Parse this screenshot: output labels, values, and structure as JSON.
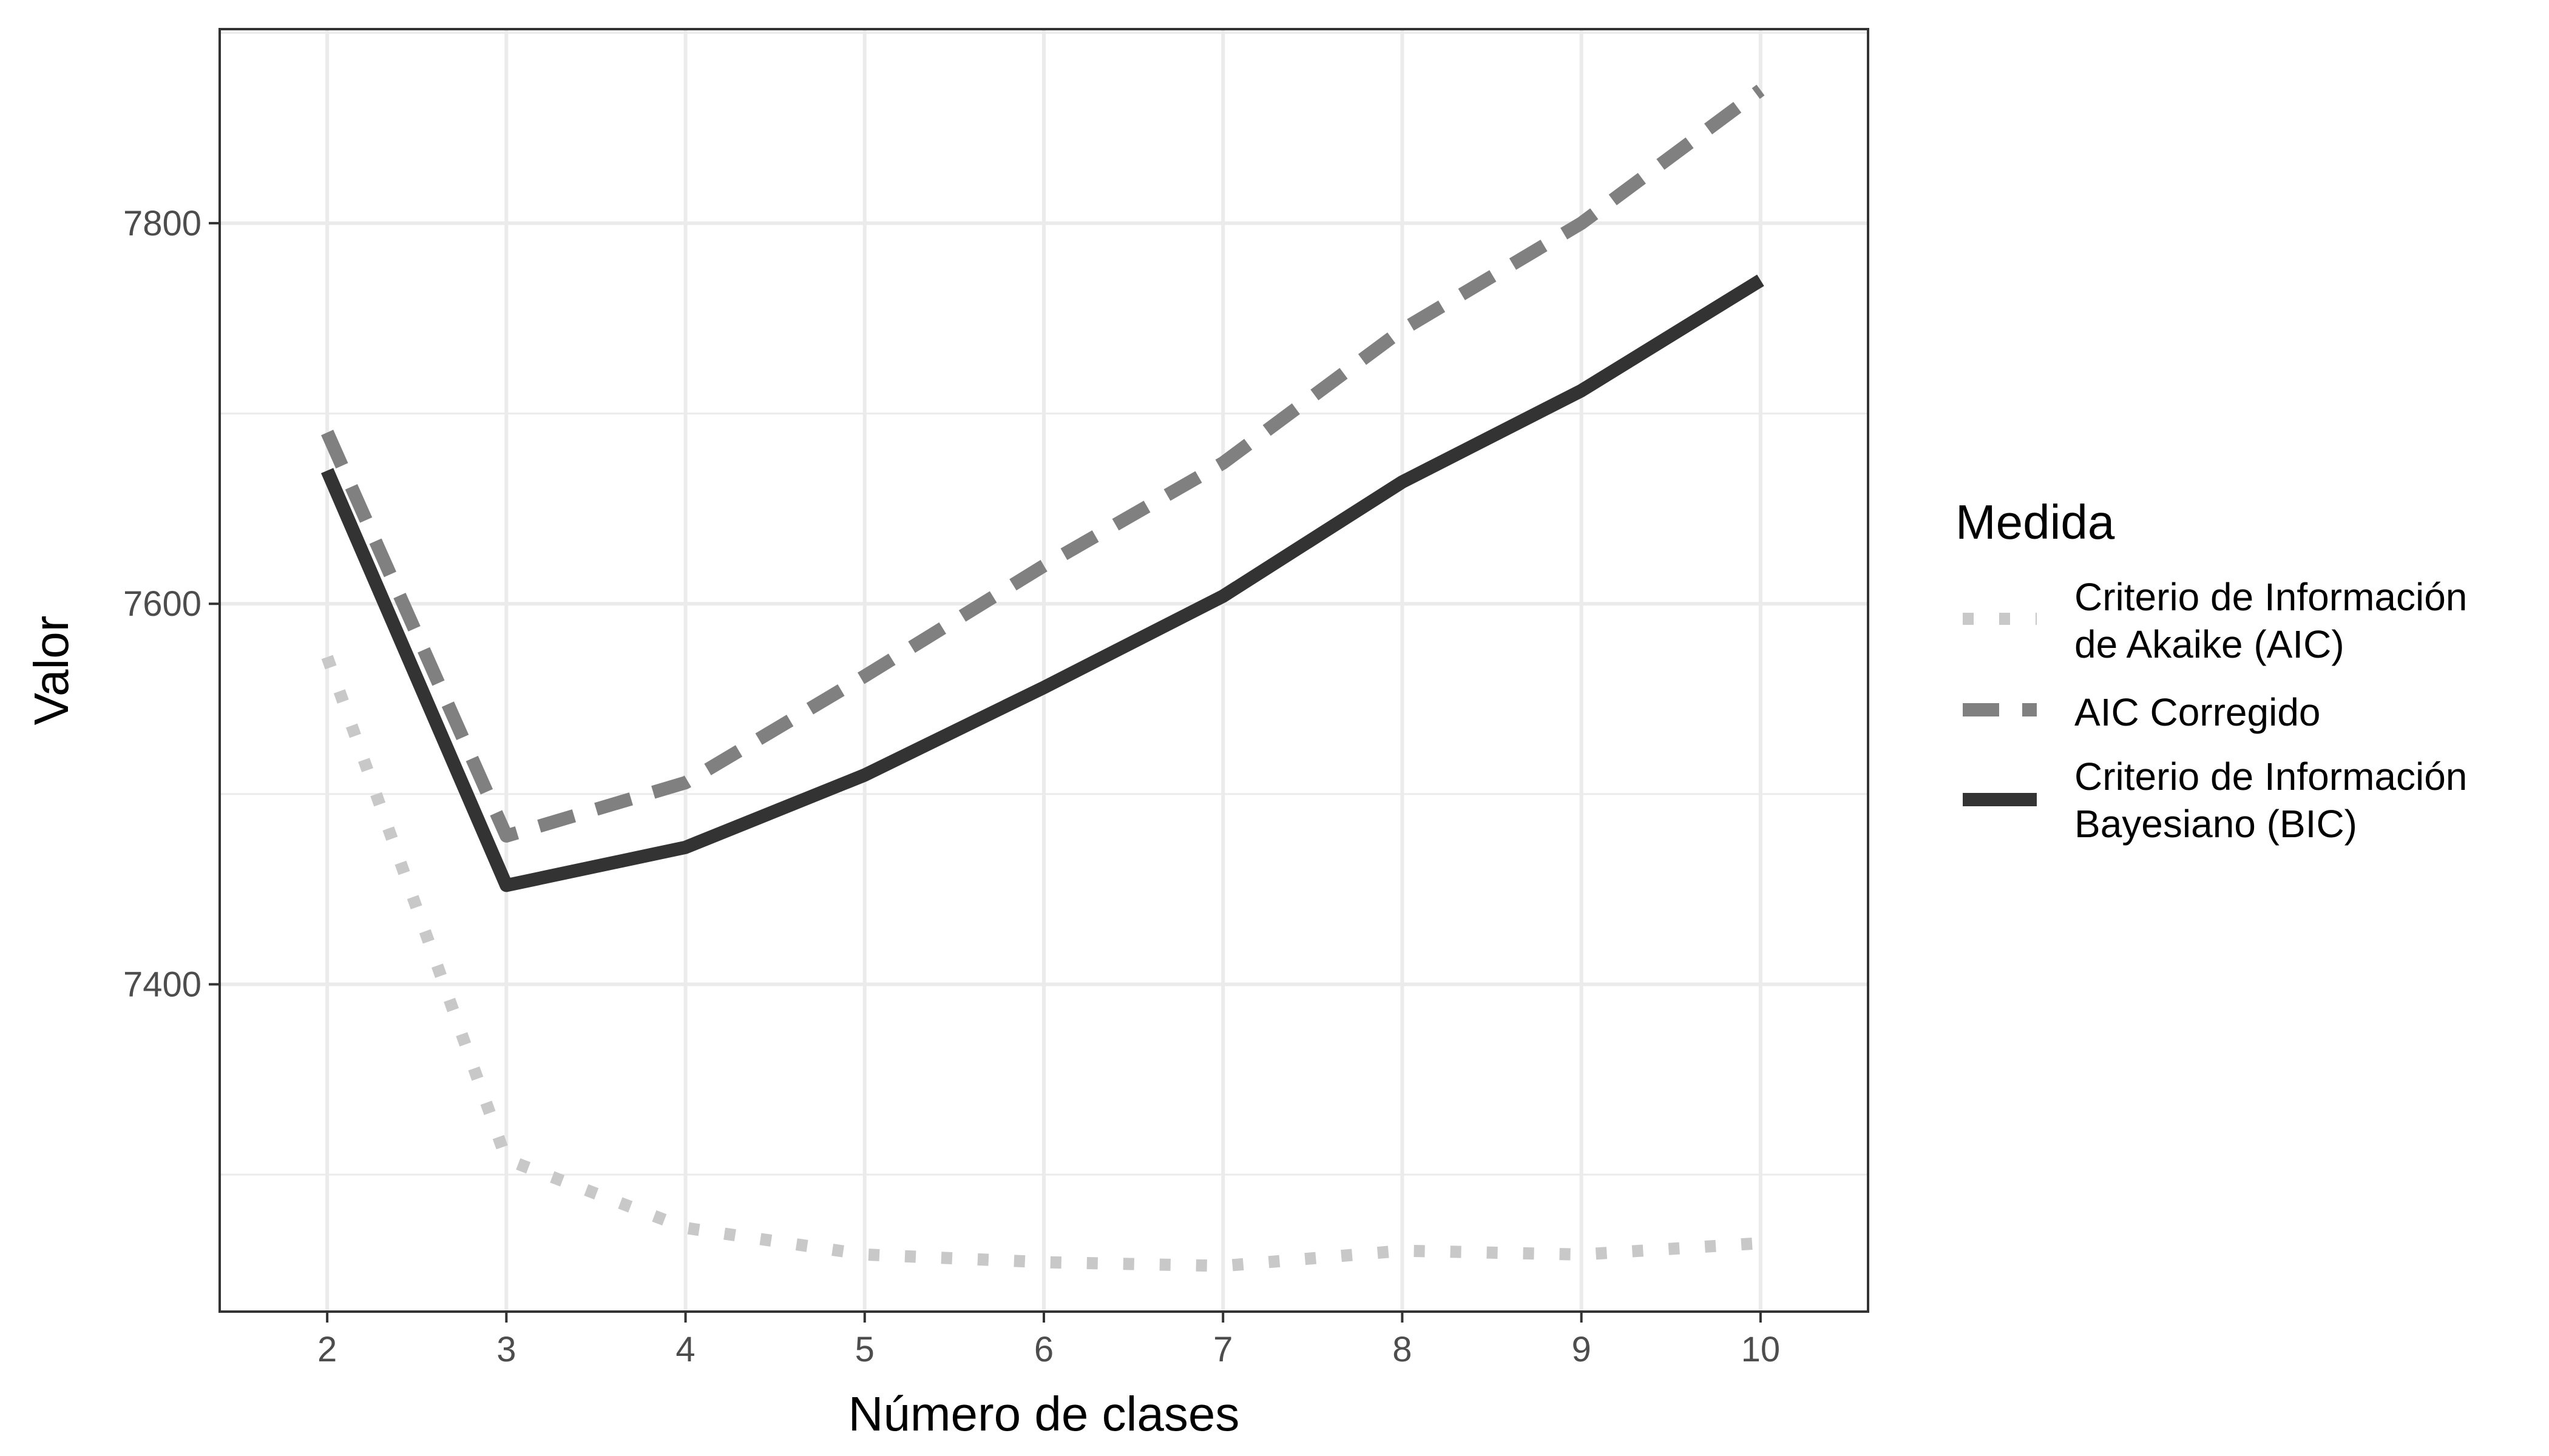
{
  "chart_data": {
    "type": "line",
    "xlabel": "Número de clases",
    "ylabel": "Valor",
    "x": [
      2,
      3,
      4,
      5,
      6,
      7,
      8,
      9,
      10
    ],
    "xlim": [
      1.4,
      10.6
    ],
    "ylim": [
      7228,
      7902
    ],
    "y_ticks": [
      7400,
      7600,
      7800
    ],
    "x_ticks": [
      2,
      3,
      4,
      5,
      6,
      7,
      8,
      9,
      10
    ],
    "grid": true,
    "legend": {
      "title": "Medida",
      "placement": "right"
    },
    "series": [
      {
        "name_lines": [
          "Criterio de Información",
          "de Akaike (AIC)"
        ],
        "line_style": "dotted",
        "color": "#c8c8c8",
        "values": [
          7572,
          7308,
          7272,
          7258,
          7254,
          7252,
          7260,
          7258,
          7264
        ]
      },
      {
        "name_lines": [
          "AIC Corregido"
        ],
        "line_style": "dashed",
        "color": "#808080",
        "values": [
          7690,
          7478,
          7506,
          7562,
          7620,
          7674,
          7744,
          7800,
          7870
        ]
      },
      {
        "name_lines": [
          "Criterio de Información",
          "Bayesiano (BIC)"
        ],
        "line_style": "solid",
        "color": "#333333",
        "values": [
          7670,
          7452,
          7472,
          7510,
          7556,
          7604,
          7664,
          7712,
          7770
        ]
      }
    ]
  }
}
